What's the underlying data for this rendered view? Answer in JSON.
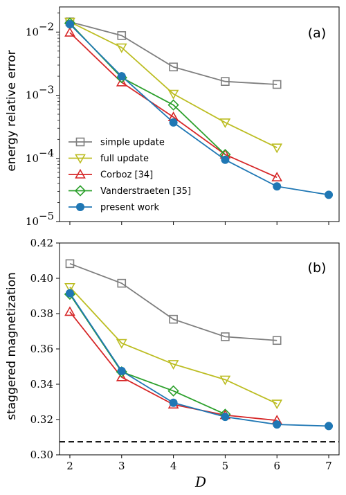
{
  "chart_data": [
    {
      "type": "line",
      "panel_label": "(a)",
      "ylabel": "energy relative error",
      "xlabel": "",
      "yscale": "log",
      "xlim": [
        1.8,
        7.2
      ],
      "ylim": [
        1e-05,
        0.025
      ],
      "x_ticks": [
        2,
        3,
        4,
        5,
        6,
        7
      ],
      "y_ticks": [
        {
          "value": 0.01,
          "base": "10",
          "exp": "−2"
        },
        {
          "value": 0.001,
          "base": "10",
          "exp": "−3"
        },
        {
          "value": 0.0001,
          "base": "10",
          "exp": "−4"
        },
        {
          "value": 1e-05,
          "base": "10",
          "exp": "−5"
        }
      ],
      "legend": "center-left",
      "series": [
        {
          "name": "simple update",
          "color": "#7f7f7f",
          "marker": "square",
          "x": [
            2,
            3,
            4,
            5,
            6
          ],
          "y": [
            0.0145,
            0.0088,
            0.0028,
            0.00165,
            0.00148
          ]
        },
        {
          "name": "full update",
          "color": "#bcbd22",
          "marker": "triangle-down",
          "x": [
            2,
            3,
            4,
            5,
            6
          ],
          "y": [
            0.0145,
            0.0057,
            0.00105,
            0.00037,
            0.000148
          ]
        },
        {
          "name": "Corboz [34]",
          "color": "#d62728",
          "marker": "triangle-up",
          "x": [
            2,
            3,
            4,
            5,
            6
          ],
          "y": [
            0.0098,
            0.0016,
            0.00045,
            0.000115,
            5e-05
          ]
        },
        {
          "name": "Vanderstraeten [35]",
          "color": "#2ca02c",
          "marker": "diamond",
          "x": [
            2,
            3,
            4,
            5
          ],
          "y": [
            0.0138,
            0.0019,
            0.0007,
            0.000115
          ]
        },
        {
          "name": "present work",
          "color": "#1f77b4",
          "marker": "circle",
          "x": [
            2,
            3,
            4,
            5,
            6,
            7
          ],
          "y": [
            0.0133,
            0.002,
            0.00037,
            9.5e-05,
            3.6e-05,
            2.65e-05
          ]
        }
      ]
    },
    {
      "type": "line",
      "panel_label": "(b)",
      "ylabel": "staggered magnetization",
      "xlabel": "D",
      "xlim": [
        1.8,
        7.2
      ],
      "ylim": [
        0.3,
        0.42
      ],
      "x_ticks": [
        2,
        3,
        4,
        5,
        6,
        7
      ],
      "y_ticks": [
        "0.30",
        "0.32",
        "0.34",
        "0.36",
        "0.38",
        "0.40",
        "0.42"
      ],
      "reference_line": {
        "y": 0.3074,
        "style": "dashed",
        "color": "#000000"
      },
      "series": [
        {
          "name": "simple update",
          "color": "#7f7f7f",
          "marker": "square",
          "x": [
            2,
            3,
            4,
            5,
            6
          ],
          "y": [
            0.4083,
            0.3972,
            0.3768,
            0.3669,
            0.3648
          ]
        },
        {
          "name": "full update",
          "color": "#bcbd22",
          "marker": "triangle-down",
          "x": [
            2,
            3,
            4,
            5,
            6
          ],
          "y": [
            0.395,
            0.3633,
            0.3514,
            0.3426,
            0.329
          ]
        },
        {
          "name": "Corboz [34]",
          "color": "#d62728",
          "marker": "triangle-up",
          "x": [
            2,
            3,
            4,
            5,
            6
          ],
          "y": [
            0.381,
            0.344,
            0.3285,
            0.3225,
            0.3195
          ]
        },
        {
          "name": "Vanderstraeten [35]",
          "color": "#2ca02c",
          "marker": "diamond",
          "x": [
            2,
            3,
            4,
            5
          ],
          "y": [
            0.391,
            0.347,
            0.3362,
            0.323
          ]
        },
        {
          "name": "present work",
          "color": "#1f77b4",
          "marker": "circle",
          "x": [
            2,
            3,
            4,
            5,
            6,
            7
          ],
          "y": [
            0.3915,
            0.3475,
            0.3295,
            0.3215,
            0.3172,
            0.3163
          ]
        }
      ]
    }
  ]
}
